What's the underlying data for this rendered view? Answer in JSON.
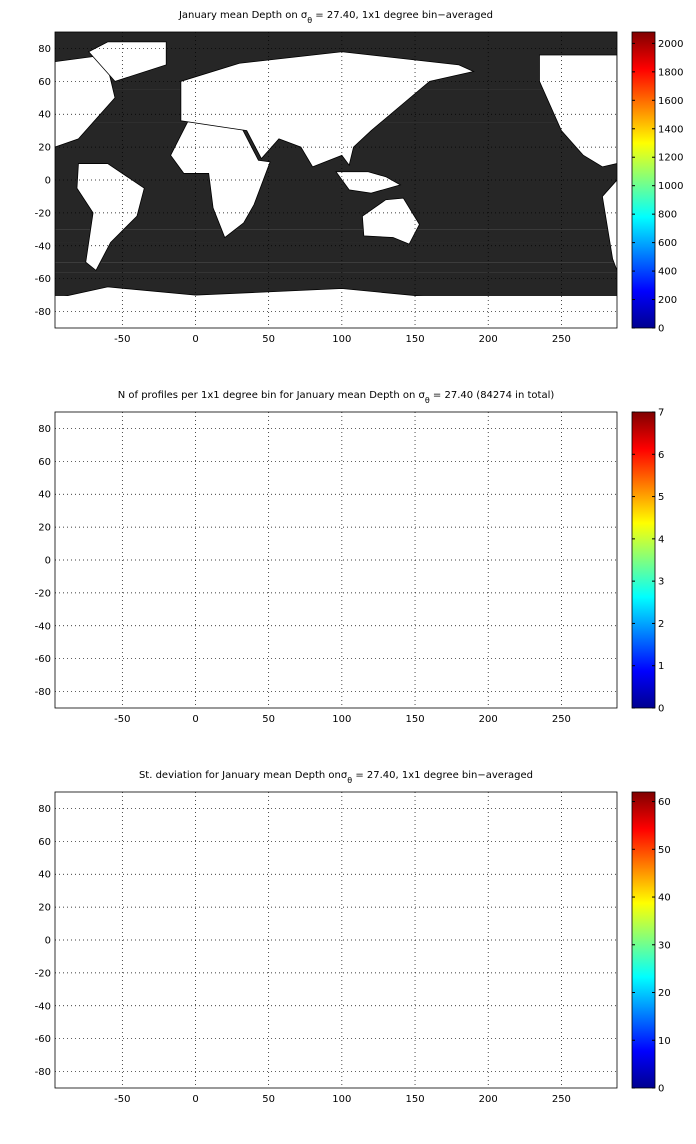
{
  "chart_data": [
    {
      "type": "map",
      "title": {
        "text": "January mean Depth on σ",
        "subscript": "θ",
        "after": " = 27.40, 1x1 degree bin−averaged"
      },
      "xlim": [
        -96,
        288
      ],
      "ylim": [
        -90,
        90
      ],
      "xticks": [
        -50,
        0,
        50,
        100,
        150,
        200,
        250
      ],
      "yticks": [
        -80,
        -60,
        -40,
        -20,
        0,
        20,
        40,
        60,
        80
      ],
      "grid": true,
      "colormap": "jet",
      "clim": [
        0,
        2080
      ],
      "cticks": [
        0,
        200,
        400,
        600,
        800,
        1000,
        1200,
        1400,
        1600,
        1800,
        2000
      ]
    },
    {
      "type": "map",
      "title": {
        "text": "N of profiles per 1x1 degree bin for January mean Depth on σ",
        "subscript": "θ",
        "after": " = 27.40 (84274 in total)"
      },
      "xlim": [
        -96,
        288
      ],
      "ylim": [
        -90,
        90
      ],
      "xticks": [
        -50,
        0,
        50,
        100,
        150,
        200,
        250
      ],
      "yticks": [
        -80,
        -60,
        -40,
        -20,
        0,
        20,
        40,
        60,
        80
      ],
      "grid": true,
      "colormap": "jet",
      "clim": [
        0,
        7
      ],
      "cticks": [
        0,
        1,
        2,
        3,
        4,
        5,
        6,
        7
      ]
    },
    {
      "type": "map",
      "title": {
        "text": "St. deviation for January mean Depth onσ",
        "subscript": "θ",
        "after": " = 27.40, 1x1 degree bin−averaged"
      },
      "xlim": [
        -96,
        288
      ],
      "ylim": [
        -90,
        90
      ],
      "xticks": [
        -50,
        0,
        50,
        100,
        150,
        200,
        250
      ],
      "yticks": [
        -80,
        -60,
        -40,
        -20,
        0,
        20,
        40,
        60,
        80
      ],
      "grid": true,
      "colormap": "jet",
      "clim": [
        0,
        62
      ],
      "cticks": [
        0,
        10,
        20,
        30,
        40,
        50,
        60
      ]
    }
  ]
}
